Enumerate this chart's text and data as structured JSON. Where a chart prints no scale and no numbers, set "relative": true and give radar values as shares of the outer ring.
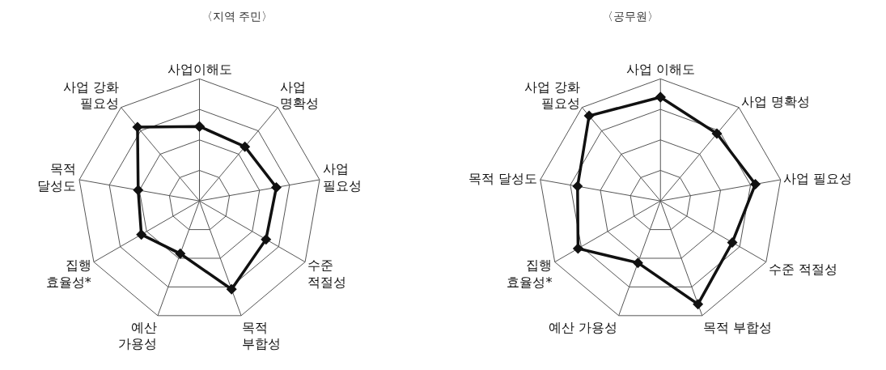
{
  "chart_data": [
    {
      "type": "radar",
      "title": "〈지역 주민〉",
      "relative": true,
      "marker": "diamond",
      "line_style": "solid",
      "categories": [
        "사업이해도",
        "사업\n명확성",
        "사업\n필요성",
        "수준\n적절성",
        "목적\n부합성",
        "예산\n가용성",
        "집행\n효율성*",
        "목적\n달성도",
        "사업 강화\n필요성"
      ],
      "series": [
        {
          "color": "#111111",
          "values": [
            0.61,
            0.58,
            0.64,
            0.63,
            0.77,
            0.46,
            0.55,
            0.51,
            0.79
          ]
        }
      ]
    },
    {
      "type": "radar",
      "title": "〈공무원〉",
      "relative": true,
      "marker": "diamond",
      "line_style": "solid",
      "categories": [
        "사업 이해도",
        "사업 명확성",
        "사업 필요성",
        "수준 적절성",
        "목적 부합성",
        "예산 가용성",
        "집행\n효율성*",
        "목적 달성도",
        "사업 강화\n필요성"
      ],
      "series": [
        {
          "color": "#111111",
          "values": [
            0.85,
            0.72,
            0.79,
            0.68,
            0.9,
            0.54,
            0.78,
            0.69,
            0.91
          ]
        }
      ]
    }
  ]
}
